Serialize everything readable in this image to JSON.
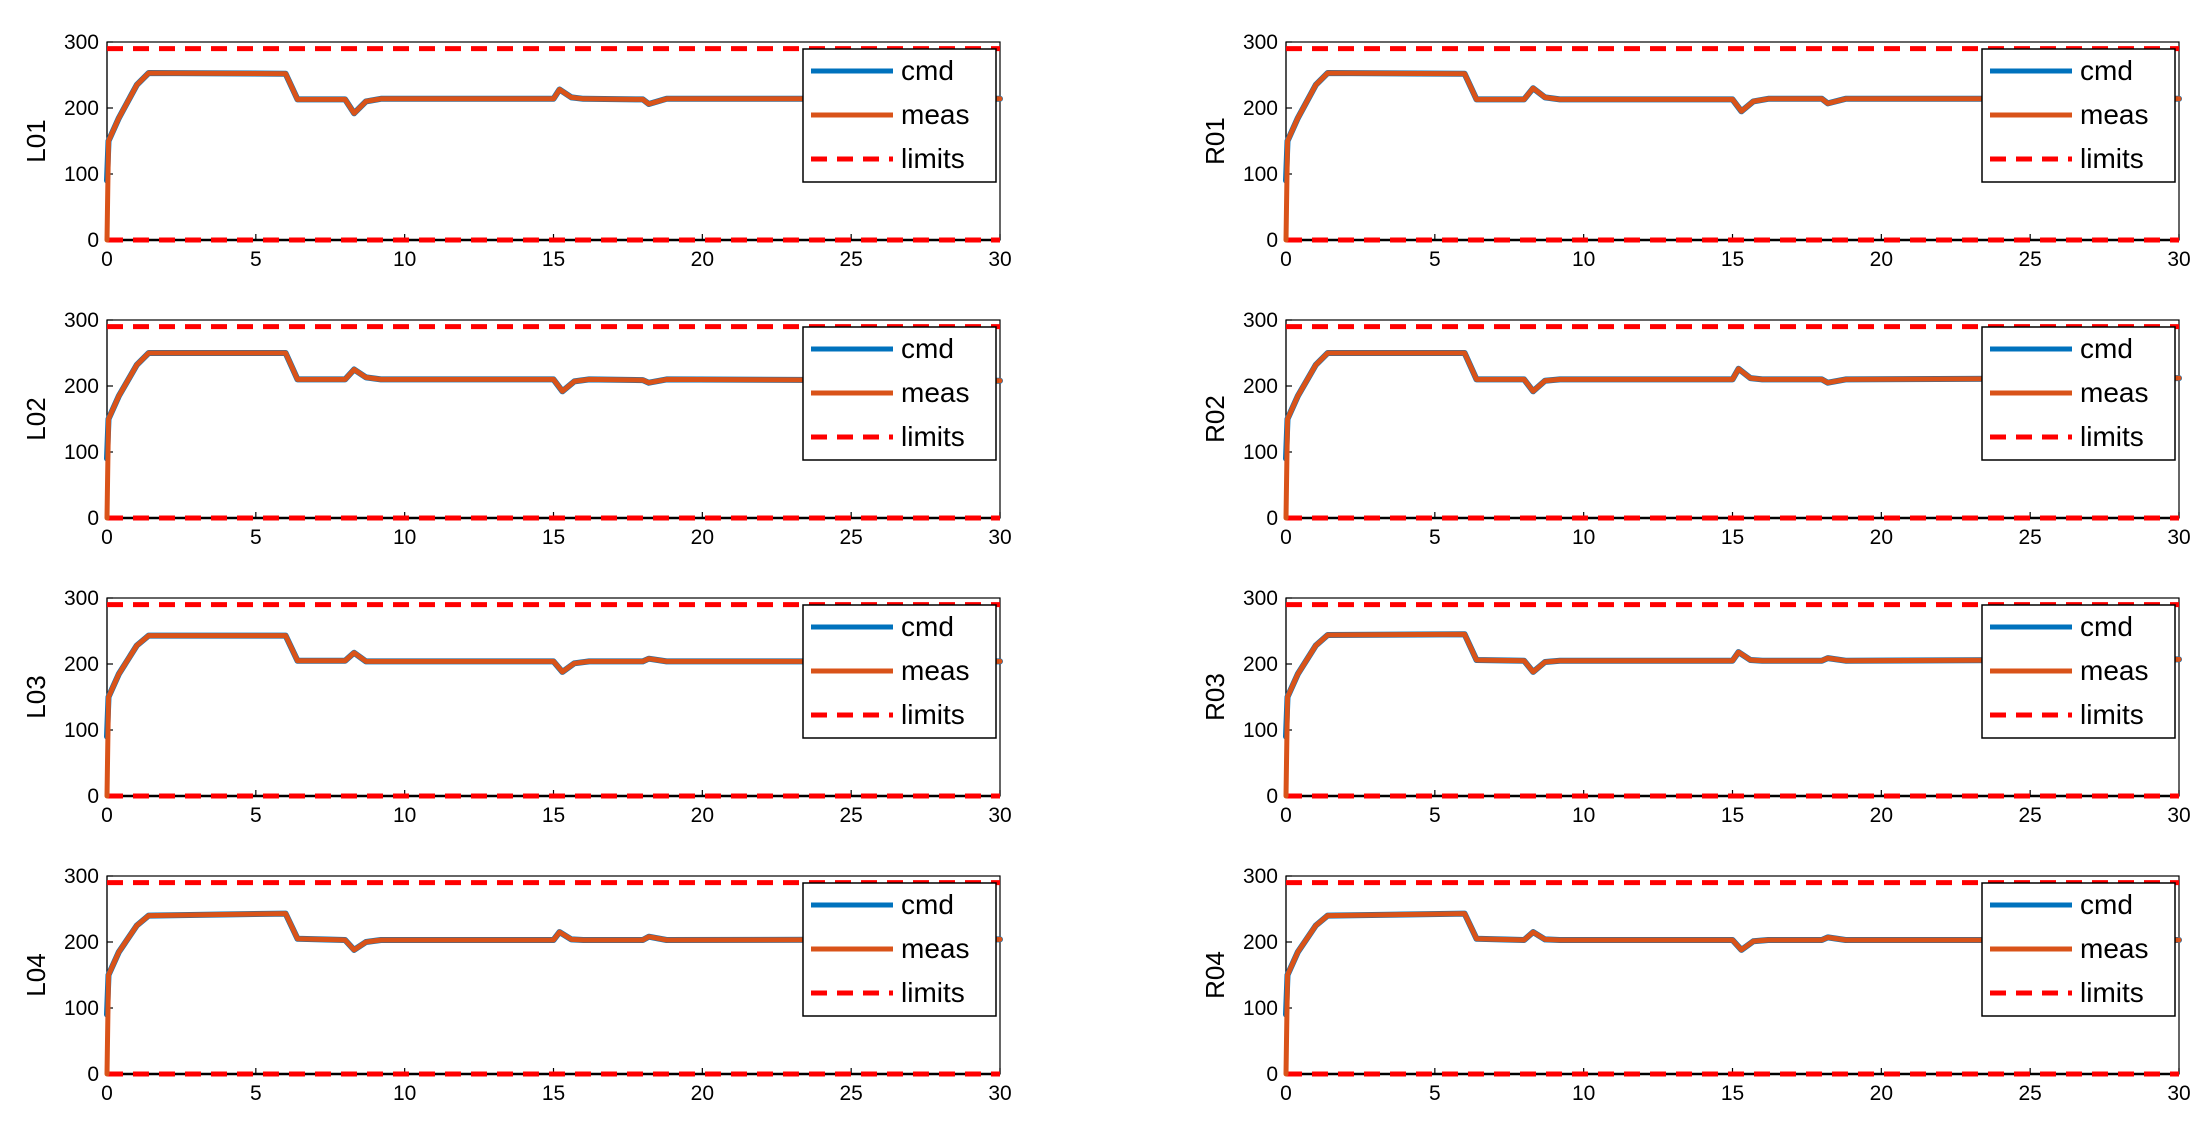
{
  "x_ticks": [
    "0",
    "5",
    "10",
    "15",
    "20",
    "25",
    "30"
  ],
  "y_ticks": [
    "0",
    "100",
    "200",
    "300"
  ],
  "legend": {
    "cmd": "cmd",
    "meas": "meas",
    "limits": "limits"
  },
  "colors": {
    "cmd": "#0072BD",
    "meas": "#D95319",
    "limits": "#FF0000",
    "axis": "#000000",
    "grid": "#000000"
  },
  "chart_data": [
    {
      "type": "line",
      "ylabel": "L01",
      "xlim": [
        0,
        30
      ],
      "ylim": [
        0,
        300
      ],
      "limits": [
        0,
        290
      ],
      "legend_position": "top-right",
      "series": [
        {
          "name": "cmd",
          "x": [
            0,
            0.05,
            0.4,
            1.0,
            1.4,
            6.0,
            6.4,
            8.0,
            8.3,
            8.7,
            9.2,
            15.0,
            15.2,
            15.6,
            16.0,
            18.0,
            18.2,
            18.8,
            30
          ],
          "y": [
            90,
            150,
            185,
            235,
            253,
            252,
            213,
            213,
            192,
            210,
            214,
            214,
            228,
            216,
            214,
            213,
            206,
            214,
            214
          ]
        },
        {
          "name": "meas",
          "x": [
            0,
            0.05,
            0.4,
            1.0,
            1.4,
            6.0,
            6.4,
            8.0,
            8.3,
            8.7,
            9.2,
            15.0,
            15.2,
            15.6,
            16.0,
            18.0,
            18.2,
            18.8,
            30
          ],
          "y": [
            0,
            150,
            185,
            235,
            253,
            252,
            213,
            213,
            192,
            210,
            214,
            214,
            228,
            216,
            214,
            213,
            206,
            214,
            214
          ]
        }
      ]
    },
    {
      "type": "line",
      "ylabel": "L02",
      "xlim": [
        0,
        30
      ],
      "ylim": [
        0,
        300
      ],
      "limits": [
        0,
        290
      ],
      "legend_position": "top-right",
      "series": [
        {
          "name": "cmd",
          "x": [
            0,
            0.05,
            0.4,
            1.0,
            1.4,
            6.0,
            6.4,
            8.0,
            8.3,
            8.7,
            9.2,
            15.0,
            15.3,
            15.7,
            16.2,
            18.0,
            18.2,
            18.8,
            30
          ],
          "y": [
            90,
            150,
            185,
            232,
            250,
            250,
            210,
            210,
            225,
            213,
            210,
            210,
            192,
            207,
            210,
            209,
            205,
            210,
            208
          ]
        },
        {
          "name": "meas",
          "x": [
            0,
            0.05,
            0.4,
            1.0,
            1.4,
            6.0,
            6.4,
            8.0,
            8.3,
            8.7,
            9.2,
            15.0,
            15.3,
            15.7,
            16.2,
            18.0,
            18.2,
            18.8,
            30
          ],
          "y": [
            0,
            150,
            185,
            232,
            250,
            250,
            210,
            210,
            225,
            213,
            210,
            210,
            192,
            207,
            210,
            209,
            205,
            210,
            208
          ]
        }
      ]
    },
    {
      "type": "line",
      "ylabel": "L03",
      "xlim": [
        0,
        30
      ],
      "ylim": [
        0,
        300
      ],
      "limits": [
        0,
        290
      ],
      "legend_position": "top-right",
      "series": [
        {
          "name": "cmd",
          "x": [
            0,
            0.05,
            0.4,
            1.0,
            1.4,
            6.0,
            6.4,
            8.0,
            8.3,
            8.7,
            9.2,
            15.0,
            15.3,
            15.7,
            16.2,
            18.0,
            18.2,
            18.8,
            30
          ],
          "y": [
            90,
            150,
            185,
            228,
            243,
            243,
            205,
            205,
            217,
            204,
            204,
            204,
            188,
            201,
            204,
            204,
            208,
            204,
            204
          ]
        },
        {
          "name": "meas",
          "x": [
            0,
            0.05,
            0.4,
            1.0,
            1.4,
            6.0,
            6.4,
            8.0,
            8.3,
            8.7,
            9.2,
            15.0,
            15.3,
            15.7,
            16.2,
            18.0,
            18.2,
            18.8,
            30
          ],
          "y": [
            0,
            150,
            185,
            228,
            243,
            243,
            205,
            205,
            217,
            204,
            204,
            204,
            188,
            201,
            204,
            204,
            208,
            204,
            204
          ]
        }
      ]
    },
    {
      "type": "line",
      "ylabel": "L04",
      "xlim": [
        0,
        30
      ],
      "ylim": [
        0,
        300
      ],
      "limits": [
        0,
        290
      ],
      "legend_position": "top-right",
      "series": [
        {
          "name": "cmd",
          "x": [
            0,
            0.05,
            0.4,
            1.0,
            1.4,
            6.0,
            6.4,
            8.0,
            8.3,
            8.7,
            9.2,
            15.0,
            15.2,
            15.6,
            16.0,
            18.0,
            18.2,
            18.8,
            30
          ],
          "y": [
            90,
            150,
            185,
            225,
            240,
            243,
            205,
            203,
            188,
            200,
            203,
            203,
            215,
            204,
            203,
            203,
            208,
            203,
            204
          ]
        },
        {
          "name": "meas",
          "x": [
            0,
            0.05,
            0.4,
            1.0,
            1.4,
            6.0,
            6.4,
            8.0,
            8.3,
            8.7,
            9.2,
            15.0,
            15.2,
            15.6,
            16.0,
            18.0,
            18.2,
            18.8,
            30
          ],
          "y": [
            0,
            150,
            185,
            225,
            240,
            243,
            205,
            203,
            188,
            200,
            203,
            203,
            215,
            204,
            203,
            203,
            208,
            203,
            204
          ]
        }
      ]
    },
    {
      "type": "line",
      "ylabel": "R01",
      "xlim": [
        0,
        30
      ],
      "ylim": [
        0,
        300
      ],
      "limits": [
        0,
        290
      ],
      "legend_position": "top-right",
      "series": [
        {
          "name": "cmd",
          "x": [
            0,
            0.05,
            0.4,
            1.0,
            1.4,
            6.0,
            6.4,
            8.0,
            8.3,
            8.7,
            9.2,
            15.0,
            15.3,
            15.7,
            16.2,
            18.0,
            18.2,
            18.8,
            30
          ],
          "y": [
            90,
            150,
            185,
            235,
            253,
            252,
            213,
            213,
            230,
            216,
            213,
            213,
            195,
            210,
            214,
            214,
            207,
            214,
            214
          ]
        },
        {
          "name": "meas",
          "x": [
            0,
            0.05,
            0.4,
            1.0,
            1.4,
            6.0,
            6.4,
            8.0,
            8.3,
            8.7,
            9.2,
            15.0,
            15.3,
            15.7,
            16.2,
            18.0,
            18.2,
            18.8,
            30
          ],
          "y": [
            0,
            150,
            185,
            235,
            253,
            252,
            213,
            213,
            230,
            216,
            213,
            213,
            195,
            210,
            214,
            214,
            207,
            214,
            214
          ]
        }
      ]
    },
    {
      "type": "line",
      "ylabel": "R02",
      "xlim": [
        0,
        30
      ],
      "ylim": [
        0,
        300
      ],
      "limits": [
        0,
        290
      ],
      "legend_position": "top-right",
      "series": [
        {
          "name": "cmd",
          "x": [
            0,
            0.05,
            0.4,
            1.0,
            1.4,
            6.0,
            6.4,
            8.0,
            8.3,
            8.7,
            9.2,
            15.0,
            15.2,
            15.6,
            16.0,
            18.0,
            18.2,
            18.8,
            30
          ],
          "y": [
            90,
            150,
            185,
            232,
            250,
            250,
            210,
            210,
            192,
            208,
            210,
            210,
            226,
            212,
            210,
            210,
            205,
            210,
            212
          ]
        },
        {
          "name": "meas",
          "x": [
            0,
            0.05,
            0.4,
            1.0,
            1.4,
            6.0,
            6.4,
            8.0,
            8.3,
            8.7,
            9.2,
            15.0,
            15.2,
            15.6,
            16.0,
            18.0,
            18.2,
            18.8,
            30
          ],
          "y": [
            0,
            150,
            185,
            232,
            250,
            250,
            210,
            210,
            192,
            208,
            210,
            210,
            226,
            212,
            210,
            210,
            205,
            210,
            212
          ]
        }
      ]
    },
    {
      "type": "line",
      "ylabel": "R03",
      "xlim": [
        0,
        30
      ],
      "ylim": [
        0,
        300
      ],
      "limits": [
        0,
        290
      ],
      "legend_position": "top-right",
      "series": [
        {
          "name": "cmd",
          "x": [
            0,
            0.05,
            0.4,
            1.0,
            1.4,
            6.0,
            6.4,
            8.0,
            8.3,
            8.7,
            9.2,
            15.0,
            15.2,
            15.6,
            16.0,
            18.0,
            18.2,
            18.8,
            30
          ],
          "y": [
            90,
            150,
            185,
            228,
            244,
            245,
            206,
            205,
            188,
            203,
            205,
            205,
            218,
            206,
            205,
            205,
            209,
            205,
            207
          ]
        },
        {
          "name": "meas",
          "x": [
            0,
            0.05,
            0.4,
            1.0,
            1.4,
            6.0,
            6.4,
            8.0,
            8.3,
            8.7,
            9.2,
            15.0,
            15.2,
            15.6,
            16.0,
            18.0,
            18.2,
            18.8,
            30
          ],
          "y": [
            0,
            150,
            185,
            228,
            244,
            245,
            206,
            205,
            188,
            203,
            205,
            205,
            218,
            206,
            205,
            205,
            209,
            205,
            207
          ]
        }
      ]
    },
    {
      "type": "line",
      "ylabel": "R04",
      "xlim": [
        0,
        30
      ],
      "ylim": [
        0,
        300
      ],
      "limits": [
        0,
        290
      ],
      "legend_position": "top-right",
      "series": [
        {
          "name": "cmd",
          "x": [
            0,
            0.05,
            0.4,
            1.0,
            1.4,
            6.0,
            6.4,
            8.0,
            8.3,
            8.7,
            9.2,
            15.0,
            15.3,
            15.7,
            16.2,
            18.0,
            18.2,
            18.8,
            30
          ],
          "y": [
            90,
            150,
            185,
            225,
            240,
            243,
            205,
            203,
            215,
            204,
            203,
            203,
            188,
            201,
            203,
            203,
            207,
            203,
            203
          ]
        },
        {
          "name": "meas",
          "x": [
            0,
            0.05,
            0.4,
            1.0,
            1.4,
            6.0,
            6.4,
            8.0,
            8.3,
            8.7,
            9.2,
            15.0,
            15.3,
            15.7,
            16.2,
            18.0,
            18.2,
            18.8,
            30
          ],
          "y": [
            0,
            150,
            185,
            225,
            240,
            243,
            205,
            203,
            215,
            204,
            203,
            203,
            188,
            201,
            203,
            203,
            207,
            203,
            203
          ]
        }
      ]
    }
  ]
}
